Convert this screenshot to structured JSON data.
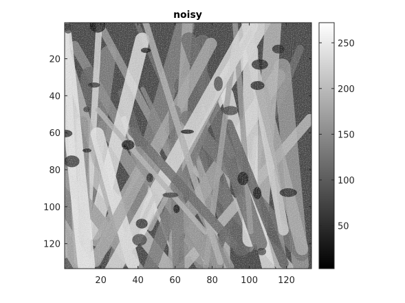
{
  "chart_data": {
    "type": "heatmap",
    "title": "noisy",
    "xlabel": "",
    "ylabel": "",
    "image_size": [
      133,
      133
    ],
    "xlim": [
      0.5,
      133.5
    ],
    "ylim": [
      0.5,
      133.5
    ],
    "y_direction": "reverse",
    "x_ticks": [
      20,
      40,
      60,
      80,
      100,
      120
    ],
    "y_ticks": [
      20,
      40,
      60,
      80,
      100,
      120
    ],
    "colormap": "gray",
    "color_limits": [
      3,
      272
    ],
    "colorbar_ticks": [
      50,
      100,
      150,
      200,
      250
    ],
    "content": "grayscale photograph of grass blades with added noise",
    "grid": false
  }
}
